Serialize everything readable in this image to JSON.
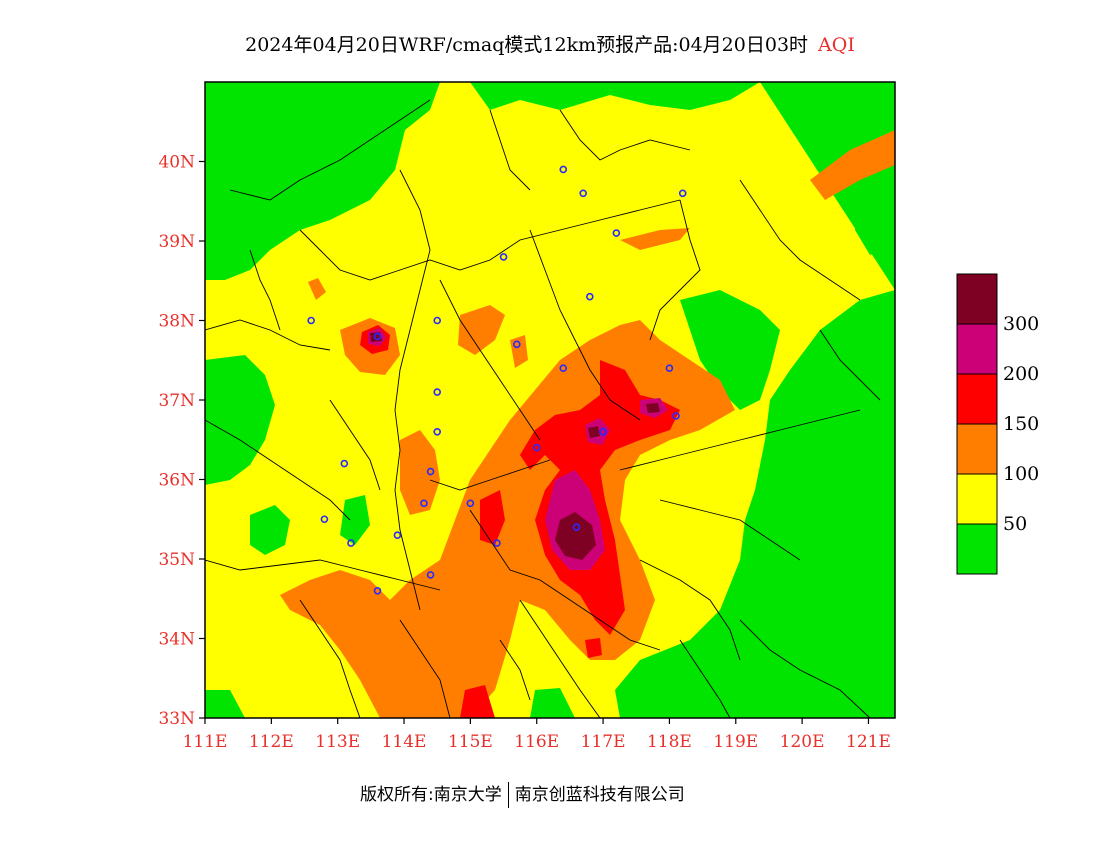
{
  "title": {
    "main": "2024年04月20日WRF/cmaq模式12km预报产品:04月20日03时",
    "variable": "AQI"
  },
  "map": {
    "lon_range": [
      111,
      121.4
    ],
    "lat_range": [
      33,
      41
    ],
    "lon_ticks": [
      "111E",
      "112E",
      "113E",
      "114E",
      "115E",
      "116E",
      "117E",
      "118E",
      "119E",
      "120E",
      "121E"
    ],
    "lat_ticks": [
      "33N",
      "34N",
      "35N",
      "36N",
      "37N",
      "38N",
      "39N",
      "40N"
    ],
    "stations": [
      [
        116.4,
        39.9
      ],
      [
        116.7,
        39.6
      ],
      [
        117.2,
        39.1
      ],
      [
        118.2,
        39.6
      ],
      [
        115.5,
        38.8
      ],
      [
        116.8,
        38.3
      ],
      [
        114.5,
        38.0
      ],
      [
        112.6,
        38.0
      ],
      [
        113.6,
        37.8
      ],
      [
        115.7,
        37.7
      ],
      [
        116.4,
        37.4
      ],
      [
        118.0,
        37.4
      ],
      [
        114.5,
        37.1
      ],
      [
        114.5,
        36.6
      ],
      [
        118.1,
        36.8
      ],
      [
        117.0,
        36.6
      ],
      [
        116.0,
        36.4
      ],
      [
        113.1,
        36.2
      ],
      [
        114.4,
        36.1
      ],
      [
        114.3,
        35.7
      ],
      [
        115.0,
        35.7
      ],
      [
        115.4,
        35.2
      ],
      [
        112.8,
        35.5
      ],
      [
        113.2,
        35.2
      ],
      [
        113.9,
        35.3
      ],
      [
        116.6,
        35.4
      ],
      [
        114.4,
        34.8
      ],
      [
        113.6,
        34.6
      ]
    ]
  },
  "legend": {
    "labels": [
      "50",
      "100",
      "150",
      "200",
      "300"
    ],
    "colors": [
      "#00e400",
      "#ffff00",
      "#ff7e00",
      "#ff0000",
      "#cc0077",
      "#7e0023"
    ]
  },
  "footer": {
    "left": "版权所有:南京大学",
    "right": "南京创蓝科技有限公司"
  }
}
